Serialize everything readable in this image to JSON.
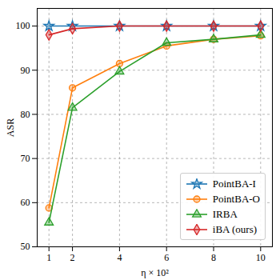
{
  "chart_data": {
    "type": "line",
    "x_label": "η × 10²",
    "y_label": "ASR",
    "x": [
      1,
      2,
      4,
      6,
      8,
      10
    ],
    "series": [
      {
        "name": "PointBA-I",
        "color": "#1f77b4",
        "marker": "star",
        "values": [
          100,
          100,
          100,
          100,
          100,
          100
        ]
      },
      {
        "name": "PointBA-O",
        "color": "#ff7f0e",
        "marker": "circle",
        "values": [
          58.8,
          86,
          91.5,
          95.5,
          97,
          97.8
        ]
      },
      {
        "name": "IRBA",
        "color": "#2ca02c",
        "marker": "triangle",
        "values": [
          55.5,
          81.5,
          89.7,
          96.2,
          97,
          98
        ]
      },
      {
        "name": "iBA (ours)",
        "color": "#d62728",
        "marker": "diamond",
        "values": [
          98,
          99.4,
          100,
          100,
          100,
          100
        ]
      }
    ],
    "xlim": [
      0.5,
      10.5
    ],
    "xticks": [
      1,
      2,
      4,
      6,
      8,
      10
    ],
    "ylim": [
      50,
      104
    ],
    "yticks": [
      50,
      60,
      70,
      80,
      90,
      100
    ],
    "grid": true,
    "legend": "lower right"
  }
}
